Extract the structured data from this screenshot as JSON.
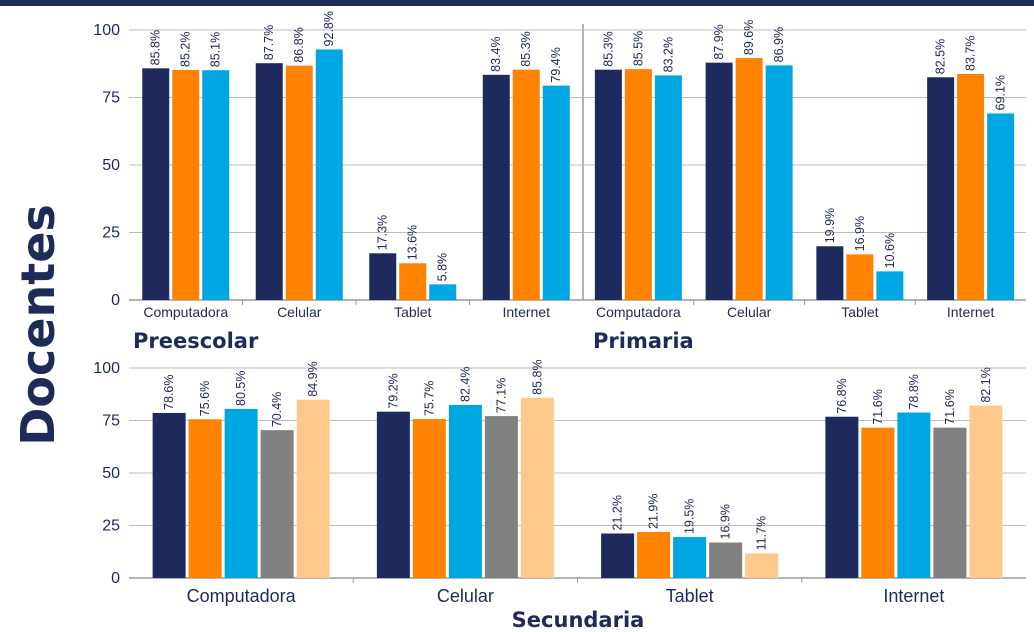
{
  "y_axis_title": "Docentes",
  "colors": {
    "title": "#1e2a57",
    "grid": "#bdbdbd",
    "series": [
      "#1e2a5e",
      "#ff8200",
      "#00a6e2",
      "#808080",
      "#ffc98c"
    ]
  },
  "chart_data": [
    {
      "type": "bar",
      "title": "Preescolar",
      "categories": [
        "Computadora",
        "Celular",
        "Tablet",
        "Internet"
      ],
      "series": [
        {
          "values": [
            85.8,
            87.7,
            17.3,
            83.4
          ],
          "labels": [
            "85.8%",
            "87.7%",
            "17.3%",
            "83.4%"
          ]
        },
        {
          "values": [
            85.2,
            86.8,
            13.6,
            85.3
          ],
          "labels": [
            "85.2%",
            "86.8%",
            "13.6%",
            "85.3%"
          ]
        },
        {
          "values": [
            85.1,
            92.8,
            5.8,
            79.4
          ],
          "labels": [
            "85.1%",
            "92.8%",
            "5.8%",
            "79.4%"
          ]
        }
      ],
      "yticks": [
        "0",
        "25",
        "50",
        "75",
        "100"
      ],
      "ylim": [
        0,
        100
      ],
      "grid": true
    },
    {
      "type": "bar",
      "title": "Primaria",
      "categories": [
        "Computadora",
        "Celular",
        "Tablet",
        "Internet"
      ],
      "series": [
        {
          "values": [
            85.3,
            87.9,
            19.9,
            82.5
          ],
          "labels": [
            "85.3%",
            "87.9%",
            "19.9%",
            "82.5%"
          ]
        },
        {
          "values": [
            85.5,
            89.6,
            16.9,
            83.7
          ],
          "labels": [
            "85.5%",
            "89.6%",
            "16.9%",
            "83.7%"
          ]
        },
        {
          "values": [
            83.2,
            86.9,
            10.6,
            69.1
          ],
          "labels": [
            "83.2%",
            "86.9%",
            "10.6%",
            "69.1%"
          ]
        }
      ],
      "yticks": [],
      "ylim": [
        0,
        100
      ],
      "grid": true
    },
    {
      "type": "bar",
      "title": "Secundaria",
      "categories": [
        "Computadora",
        "Celular",
        "Tablet",
        "Internet"
      ],
      "series": [
        {
          "values": [
            78.6,
            79.2,
            21.2,
            76.8
          ],
          "labels": [
            "78.6%",
            "79.2%",
            "21.2%",
            "76.8%"
          ]
        },
        {
          "values": [
            75.6,
            75.7,
            21.9,
            71.6
          ],
          "labels": [
            "75.6%",
            "75.7%",
            "21.9%",
            "71.6%"
          ]
        },
        {
          "values": [
            80.5,
            82.4,
            19.5,
            78.8
          ],
          "labels": [
            "80.5%",
            "82.4%",
            "19.5%",
            "78.8%"
          ]
        },
        {
          "values": [
            70.4,
            77.1,
            16.9,
            71.6
          ],
          "labels": [
            "70.4%",
            "77.1%",
            "16.9%",
            "71.6%"
          ]
        },
        {
          "values": [
            84.9,
            85.8,
            11.7,
            82.1
          ],
          "labels": [
            "84.9%",
            "85.8%",
            "11.7%",
            "82.1%"
          ]
        }
      ],
      "yticks": [
        "0",
        "25",
        "50",
        "75",
        "100"
      ],
      "ylim": [
        0,
        100
      ],
      "grid": true
    }
  ]
}
